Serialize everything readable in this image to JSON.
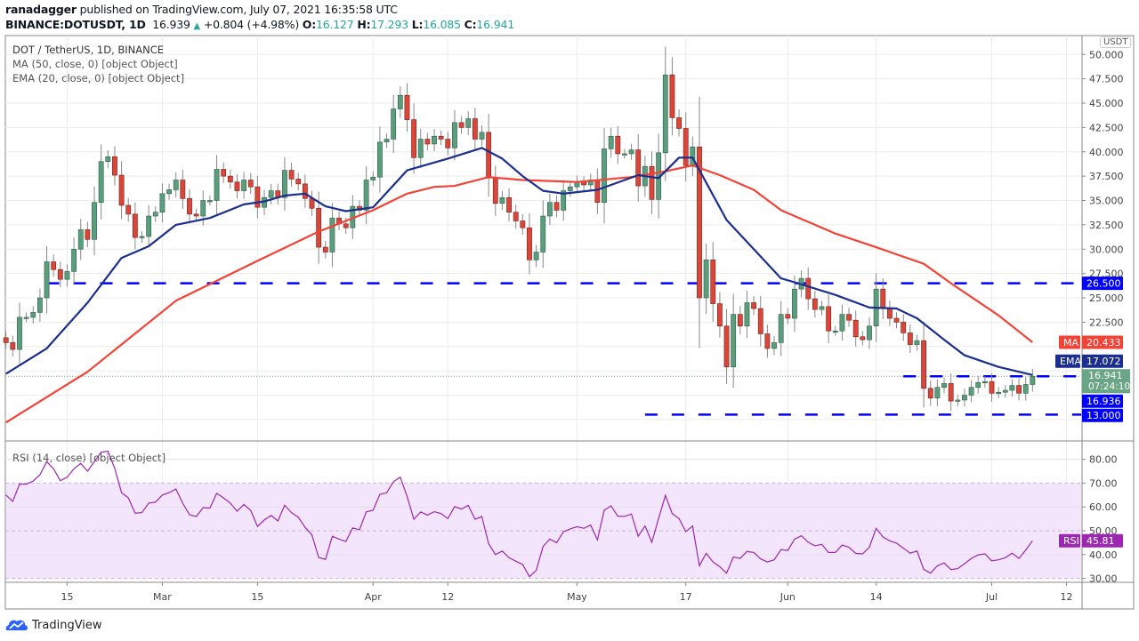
{
  "header": {
    "author": "ranadagger",
    "published_text": "published on TradingView.com, July 07, 2021 16:35:58 UTC",
    "symbol": "BINANCE:DOTUSDT, 1D",
    "last": "16.939",
    "change": "+0.804 (+4.98%)",
    "o_label": "O:",
    "o": "16.127",
    "h_label": "H:",
    "h": "17.293",
    "l_label": "L:",
    "l": "16.085",
    "c_label": "C:",
    "c": "16.941"
  },
  "legend": {
    "title": "DOT / TetherUS, 1D, BINANCE",
    "ma": "MA (50, close, 0) [object Object]",
    "ema": "EMA (20, close, 0) [object Object]",
    "rsi": "RSI (14, close) [object Object]"
  },
  "currency_badge": "USDT",
  "footer": {
    "brand": "TradingView"
  },
  "colors": {
    "up": "#5b9e7d",
    "down": "#d9463a",
    "ema": "#1a2f8f",
    "ma": "#f44336",
    "level": "#0000ff",
    "rsi": "#9c27b0"
  },
  "chart_data": {
    "type": "candlestick",
    "title": "DOT / TetherUS, 1D, BINANCE",
    "x_start": "2021-02-06",
    "x_end": "2021-07-07",
    "closes": [
      20.4,
      19.7,
      23,
      23,
      23.5,
      25,
      28.7,
      27.9,
      26.9,
      27.7,
      30,
      32,
      31,
      34.8,
      39,
      39.5,
      37.6,
      34.5,
      33.6,
      31.2,
      31.3,
      33.4,
      33.8,
      35.7,
      36.1,
      37.1,
      35.2,
      33.6,
      33.4,
      35,
      35,
      38.2,
      37.5,
      36.9,
      36,
      37.1,
      36.4,
      34.3,
      35.3,
      36,
      35.3,
      38.1,
      37.2,
      36.7,
      35.2,
      34.2,
      30.2,
      29.7,
      33.2,
      32.6,
      32.2,
      34.4,
      34,
      37.1,
      37.4,
      41,
      41.3,
      44.4,
      45.8,
      43.3,
      39.4,
      41.3,
      40.8,
      41.6,
      41.3,
      40.4,
      43,
      42.5,
      43.4,
      41.3,
      42,
      37.3,
      34.7,
      35.3,
      33.8,
      32.9,
      32.2,
      28.9,
      29.7,
      33.4,
      34.8,
      34,
      36,
      36.4,
      36.9,
      36.6,
      37.1,
      34.8,
      40.3,
      41.6,
      39.8,
      39.8,
      40.2,
      36.5,
      38.5,
      35.1,
      39.9,
      47.9,
      43.5,
      42.4,
      38.6,
      40.5,
      25,
      28.9,
      24.4,
      22.1,
      17.9,
      23.3,
      22.1,
      24.5,
      23.9,
      21.3,
      19.8,
      20.4,
      23.3,
      22.9,
      25.9,
      27,
      24.9,
      23.8,
      24.1,
      21.6,
      21.6,
      23.3,
      22.7,
      21,
      20.7,
      22.1,
      25.9,
      23.9,
      22.9,
      22.5,
      21.4,
      20.2,
      20.6,
      15.7,
      14.7,
      15.8,
      16.2,
      14.4,
      14.5,
      15,
      15.8,
      16.3,
      16.4,
      15.2,
      15.3,
      15.5,
      16,
      15.2,
      16.1,
      16.941
    ],
    "first_open": 20.9,
    "ma50": [
      [
        0,
        12.2
      ],
      [
        12,
        17.4
      ],
      [
        25,
        24.7
      ],
      [
        37,
        28.8
      ],
      [
        46,
        31.8
      ],
      [
        54,
        34
      ],
      [
        59,
        35.7
      ],
      [
        63,
        36.4
      ],
      [
        66,
        36.5
      ],
      [
        71,
        37.4
      ],
      [
        76,
        37.1
      ],
      [
        84,
        36.9
      ],
      [
        92,
        37.4
      ],
      [
        97,
        38
      ],
      [
        101,
        38.6
      ],
      [
        105,
        37.6
      ],
      [
        110,
        36.1
      ],
      [
        114,
        34
      ],
      [
        122,
        31.6
      ],
      [
        128,
        30.2
      ],
      [
        135,
        28.5
      ],
      [
        139,
        26.5
      ],
      [
        146,
        23.2
      ],
      [
        151,
        20.433
      ]
    ],
    "ema20": [
      [
        0,
        17.2
      ],
      [
        6,
        19.8
      ],
      [
        12,
        24.5
      ],
      [
        17,
        29.1
      ],
      [
        21,
        30.3
      ],
      [
        25,
        32.5
      ],
      [
        30,
        33.2
      ],
      [
        35,
        34.6
      ],
      [
        38,
        34.9
      ],
      [
        41,
        35.5
      ],
      [
        44,
        35.7
      ],
      [
        47,
        34.4
      ],
      [
        50,
        33.9
      ],
      [
        54,
        34.3
      ],
      [
        59,
        38.1
      ],
      [
        65,
        39.3
      ],
      [
        70,
        40.4
      ],
      [
        73,
        39.3
      ],
      [
        76,
        37.5
      ],
      [
        79,
        36
      ],
      [
        82,
        35.7
      ],
      [
        87,
        36.1
      ],
      [
        93,
        37.6
      ],
      [
        96,
        37.3
      ],
      [
        99,
        39.4
      ],
      [
        101,
        39.4
      ],
      [
        106,
        33
      ],
      [
        110,
        30
      ],
      [
        114,
        27
      ],
      [
        116,
        26.6
      ],
      [
        122,
        25.3
      ],
      [
        127,
        24
      ],
      [
        131,
        23.9
      ],
      [
        134,
        22.9
      ],
      [
        138,
        20.7
      ],
      [
        141,
        19.1
      ],
      [
        146,
        17.9
      ],
      [
        151,
        17.072
      ]
    ],
    "rsi14": [
      65,
      62.3,
      69.6,
      69.6,
      70.9,
      73.5,
      79,
      76,
      71,
      72.5,
      76,
      78.3,
      75,
      79,
      83,
      83.4,
      76.2,
      66,
      63.8,
      57.4,
      57.6,
      61.6,
      62,
      65,
      66,
      67.5,
      61.6,
      56.7,
      56,
      59.7,
      59.5,
      65.7,
      63.8,
      61.6,
      58.2,
      61,
      58.6,
      51.8,
      54.5,
      56.4,
      54.1,
      60.7,
      57.6,
      55.7,
      51.4,
      48.3,
      38.8,
      38,
      47.7,
      46.5,
      45.5,
      51.2,
      50.4,
      57.9,
      58.6,
      65.3,
      65.9,
      70.6,
      72.5,
      64.4,
      54.8,
      57.9,
      56.6,
      58,
      57.2,
      55.1,
      60.1,
      59.1,
      60.7,
      54.8,
      56,
      44.6,
      40,
      41.5,
      38.7,
      37.2,
      35.9,
      30.7,
      33.4,
      43.4,
      46.5,
      45,
      49.6,
      50.8,
      51.7,
      51,
      52.4,
      46.2,
      58.6,
      60.5,
      56.1,
      56.1,
      57,
      47.7,
      52,
      45.2,
      55.1,
      64.8,
      57.2,
      55.1,
      49.6,
      52,
      35.3,
      40.5,
      36.9,
      34.9,
      32.2,
      39,
      38.4,
      41.3,
      40.9,
      38.2,
      36.9,
      37.8,
      42.1,
      41.7,
      46.5,
      47.9,
      45.2,
      43.7,
      44.3,
      40.9,
      40.9,
      44,
      43.1,
      40.5,
      40.3,
      43.1,
      51,
      47.4,
      45.8,
      44.8,
      42.7,
      40.6,
      41.5,
      33.8,
      32.2,
      35.3,
      36.5,
      33.7,
      34.1,
      36.2,
      38.4,
      39.9,
      40.3,
      37.4,
      37.8,
      38.7,
      40.6,
      38.4,
      41.9,
      45.81
    ],
    "levels": [
      {
        "value": 26.5,
        "label": "26.500",
        "from_day": 6
      },
      {
        "value": 16.936,
        "label": "16.936",
        "from_day": 132
      },
      {
        "value": 13.0,
        "label": "13.000",
        "from_day": 94
      }
    ],
    "price_ticks": [
      "50.000",
      "47.500",
      "45.000",
      "42.500",
      "40.000",
      "37.500",
      "35.000",
      "32.500",
      "30.000",
      "27.500",
      "25.000",
      "22.500"
    ],
    "price_tick_values": [
      50,
      47.5,
      45,
      42.5,
      40,
      37.5,
      35,
      32.5,
      30,
      27.5,
      25,
      22.5
    ],
    "ylim": [
      11.5,
      51.5
    ],
    "last_price": {
      "value": 16.941,
      "label": "16.941",
      "countdown": "07:24:10"
    },
    "ma_label": {
      "name": "MA",
      "value": 20.433,
      "label": "20.433"
    },
    "ema_label": {
      "name": "EMA",
      "value": 17.072,
      "label": "17.072"
    },
    "rsi_label": {
      "name": "RSI",
      "value": 45.81,
      "label": "45.81"
    },
    "rsi_ticks": [
      "80.00",
      "70.00",
      "60.00",
      "50.00",
      "40.00",
      "30.00"
    ],
    "rsi_tick_values": [
      80,
      70,
      60,
      50,
      40,
      30
    ],
    "rsi_band": [
      30,
      70
    ],
    "x_ticks": [
      {
        "label": "15",
        "day": 9
      },
      {
        "label": "Mar",
        "day": 23
      },
      {
        "label": "15",
        "day": 37
      },
      {
        "label": "Apr",
        "day": 54
      },
      {
        "label": "12",
        "day": 65
      },
      {
        "label": "May",
        "day": 84
      },
      {
        "label": "17",
        "day": 100
      },
      {
        "label": "Jun",
        "day": 115
      },
      {
        "label": "14",
        "day": 128
      },
      {
        "label": "Jul",
        "day": 145
      },
      {
        "label": "12",
        "day": 156
      }
    ]
  }
}
